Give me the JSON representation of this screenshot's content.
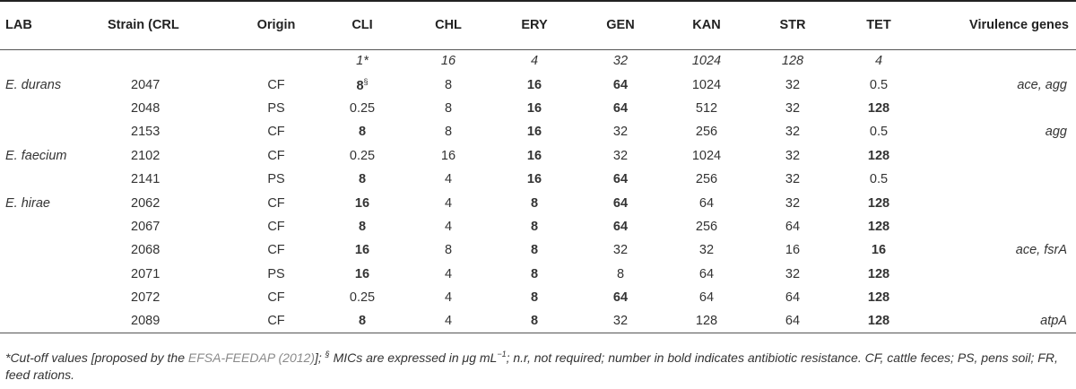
{
  "headers": {
    "lab": "LAB",
    "strain": "Strain (CRL",
    "origin": "Origin",
    "cli": "CLI",
    "chl": "CHL",
    "ery": "ERY",
    "gen": "GEN",
    "kan": "KAN",
    "str": "STR",
    "tet": "TET",
    "virulence": "Virulence genes"
  },
  "cutoff": {
    "cli": "1*",
    "chl": "16",
    "ery": "4",
    "gen": "32",
    "kan": "1024",
    "str": "128",
    "tet": "4"
  },
  "cli_first_superscript": "§",
  "rows": [
    {
      "lab": "E. durans",
      "strain": "2047",
      "origin": "CF",
      "cli": "8",
      "chl": "8",
      "ery": "16",
      "gen": "64",
      "kan": "1024",
      "str": "32",
      "tet": "0.5",
      "vir": "ace, agg"
    },
    {
      "lab": "",
      "strain": "2048",
      "origin": "PS",
      "cli": "0.25",
      "chl": "8",
      "ery": "16",
      "gen": "64",
      "kan": "512",
      "str": "32",
      "tet": "128",
      "vir": ""
    },
    {
      "lab": "",
      "strain": "2153",
      "origin": "CF",
      "cli": "8",
      "chl": "8",
      "ery": "16",
      "gen": "32",
      "kan": "256",
      "str": "32",
      "tet": "0.5",
      "vir": "agg"
    },
    {
      "lab": "E. faecium",
      "strain": "2102",
      "origin": "CF",
      "cli": "0.25",
      "chl": "16",
      "ery": "16",
      "gen": "32",
      "kan": "1024",
      "str": "32",
      "tet": "128",
      "vir": ""
    },
    {
      "lab": "",
      "strain": "2141",
      "origin": "PS",
      "cli": "8",
      "chl": "4",
      "ery": "16",
      "gen": "64",
      "kan": "256",
      "str": "32",
      "tet": "0.5",
      "vir": ""
    },
    {
      "lab": "E. hirae",
      "strain": "2062",
      "origin": "CF",
      "cli": "16",
      "chl": "4",
      "ery": "8",
      "gen": "64",
      "kan": "64",
      "str": "32",
      "tet": "128",
      "vir": ""
    },
    {
      "lab": "",
      "strain": "2067",
      "origin": "CF",
      "cli": "8",
      "chl": "4",
      "ery": "8",
      "gen": "64",
      "kan": "256",
      "str": "64",
      "tet": "128",
      "vir": ""
    },
    {
      "lab": "",
      "strain": "2068",
      "origin": "CF",
      "cli": "16",
      "chl": "8",
      "ery": "8",
      "gen": "32",
      "kan": "32",
      "str": "16",
      "tet": "16",
      "vir": "ace, fsrA"
    },
    {
      "lab": "",
      "strain": "2071",
      "origin": "PS",
      "cli": "16",
      "chl": "4",
      "ery": "8",
      "gen": "8",
      "kan": "64",
      "str": "32",
      "tet": "128",
      "vir": ""
    },
    {
      "lab": "",
      "strain": "2072",
      "origin": "CF",
      "cli": "0.25",
      "chl": "4",
      "ery": "8",
      "gen": "64",
      "kan": "64",
      "str": "64",
      "tet": "128",
      "vir": ""
    },
    {
      "lab": "",
      "strain": "2089",
      "origin": "CF",
      "cli": "8",
      "chl": "4",
      "ery": "8",
      "gen": "32",
      "kan": "128",
      "str": "64",
      "tet": "128",
      "vir": "atpA"
    }
  ],
  "bold_cells": {
    "cli": [
      0,
      2,
      4,
      5,
      6,
      7,
      8,
      10
    ],
    "ery": [
      0,
      1,
      2,
      3,
      4,
      5,
      6,
      7,
      8,
      9,
      10
    ],
    "gen": [
      0,
      1,
      4,
      5,
      6,
      9
    ],
    "tet": [
      1,
      3,
      5,
      6,
      7,
      8,
      9,
      10
    ]
  },
  "footnote": {
    "part1": "*Cut-off values [proposed by the ",
    "ref": "EFSA-FEEDAP (2012)",
    "part2": "]; ",
    "sup_mark": "§",
    "part3": " MICs are expressed in ",
    "unit": "μg mL",
    "unit_exp": "−1",
    "part4": "; n.r, not required; number in bold indicates antibiotic resistance. CF, cattle feces; PS, pens soil; FR, feed rations."
  }
}
